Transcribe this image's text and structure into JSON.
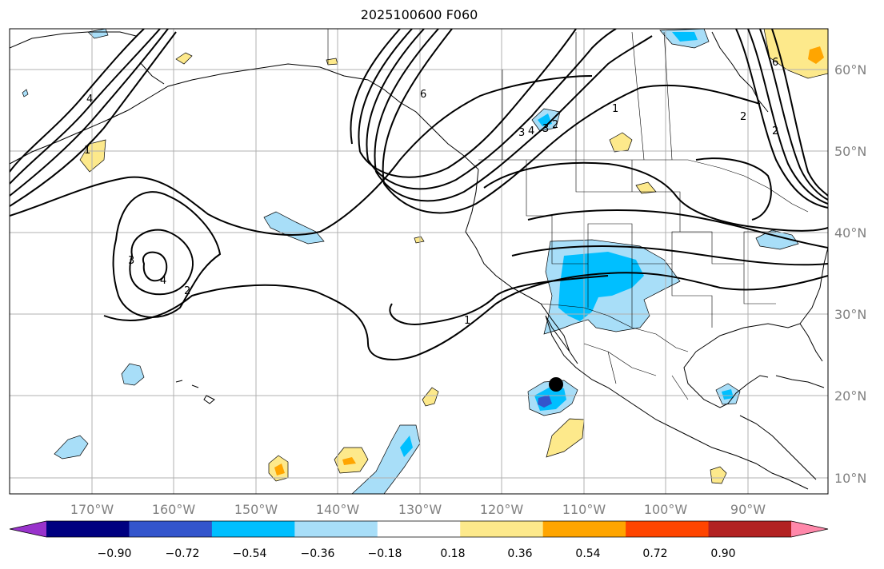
{
  "title": "2025100600 F060",
  "lon_labels": [
    "170°W",
    "160°W",
    "150°W",
    "140°W",
    "130°W",
    "120°W",
    "110°W",
    "100°W",
    "90°W"
  ],
  "lat_labels": [
    "60°N",
    "50°N",
    "40°N",
    "30°N",
    "20°N",
    "10°N"
  ],
  "colorbar": {
    "colors": [
      "#9933cc",
      "#000080",
      "#3355cc",
      "#00bfff",
      "#a8def8",
      "#ffffff",
      "#fde98b",
      "#ffa500",
      "#ff4500",
      "#b22222",
      "#ff88aa"
    ],
    "tick_labels": [
      "−0.90",
      "−0.72",
      "−0.54",
      "−0.36",
      "−0.18",
      "0.18",
      "0.36",
      "0.54",
      "0.72",
      "0.90"
    ]
  },
  "contour_labels": [
    "1",
    "1",
    "1",
    "2",
    "2",
    "2",
    "3",
    "3",
    "4",
    "4",
    "6",
    "6",
    "4",
    "3",
    "2"
  ],
  "marker": "storm-center-dot",
  "colors": {
    "light_blue": "#a8def8",
    "blue": "#00bfff",
    "dark_blue": "#3355cc",
    "yellow": "#fde98b",
    "orange": "#ffa500",
    "red": "#ff4500"
  }
}
